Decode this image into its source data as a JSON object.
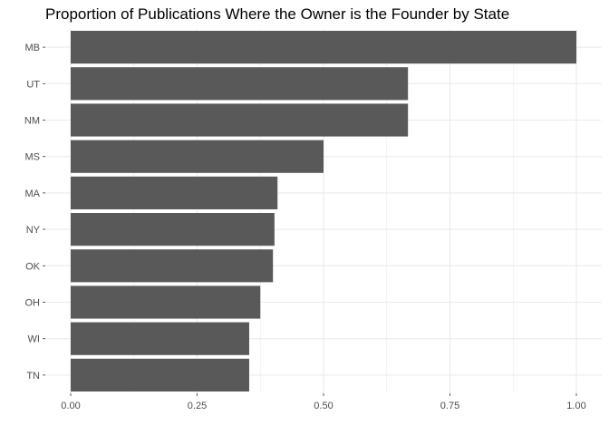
{
  "chart_data": {
    "type": "bar",
    "orientation": "horizontal",
    "title": "Proportion of Publications Where the Owner is the Founder by State",
    "xlabel": "",
    "ylabel": "",
    "categories": [
      "MB",
      "UT",
      "NM",
      "MS",
      "MA",
      "NY",
      "OK",
      "OH",
      "WI",
      "TN"
    ],
    "values": [
      1.0,
      0.667,
      0.667,
      0.5,
      0.409,
      0.403,
      0.4,
      0.375,
      0.353,
      0.353
    ],
    "xlim": [
      0,
      1
    ],
    "x_ticks": [
      "0.00",
      "0.25",
      "0.50",
      "0.75",
      "1.00"
    ],
    "grid": true,
    "bar_color": "#595959",
    "grid_color": "#ebebeb",
    "axis_text_color": "#4d4d4d"
  }
}
